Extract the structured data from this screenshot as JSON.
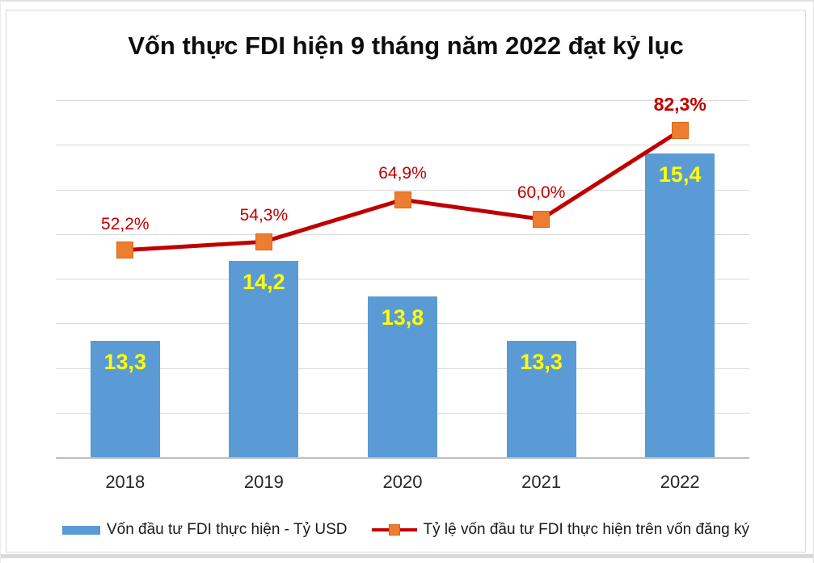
{
  "chart_data": {
    "type": "combo",
    "title": "Vốn thực FDI hiện 9 tháng năm 2022 đạt kỷ lục",
    "categories": [
      "2018",
      "2019",
      "2020",
      "2021",
      "2022"
    ],
    "series": [
      {
        "name": "Vốn đầu tư FDI thực hiện - Tỷ USD",
        "type": "bar",
        "axis": "left",
        "values": [
          13.3,
          14.2,
          13.8,
          13.3,
          15.4
        ],
        "labels": [
          "13,3",
          "14,2",
          "13,8",
          "13,3",
          "15,4"
        ],
        "color": "#5B9BD5",
        "label_color": "#FFFF00"
      },
      {
        "name": "Tỷ lệ vốn đầu tư FDI thực hiện trên vốn đăng ký",
        "type": "line",
        "axis": "right",
        "values": [
          52.2,
          54.3,
          64.9,
          60.0,
          82.3
        ],
        "labels": [
          "52,2%",
          "54,3%",
          "64,9%",
          "60,0%",
          "82,3%"
        ],
        "line_color": "#C00000",
        "marker_color": "#ED7D31",
        "marker_border_color": "#D86613",
        "label_color": "#C00000",
        "emphasized_label_index": 4
      }
    ],
    "left_axis": {
      "min": 12,
      "max": 16,
      "step": 0.5,
      "labels_visible": false
    },
    "right_axis": {
      "min": 0,
      "max": 90,
      "labels_visible": false
    },
    "grid": {
      "visible": true,
      "color": "#D9D9D9",
      "axis_line_color": "#BFBFBF"
    },
    "legend_position": "bottom"
  }
}
